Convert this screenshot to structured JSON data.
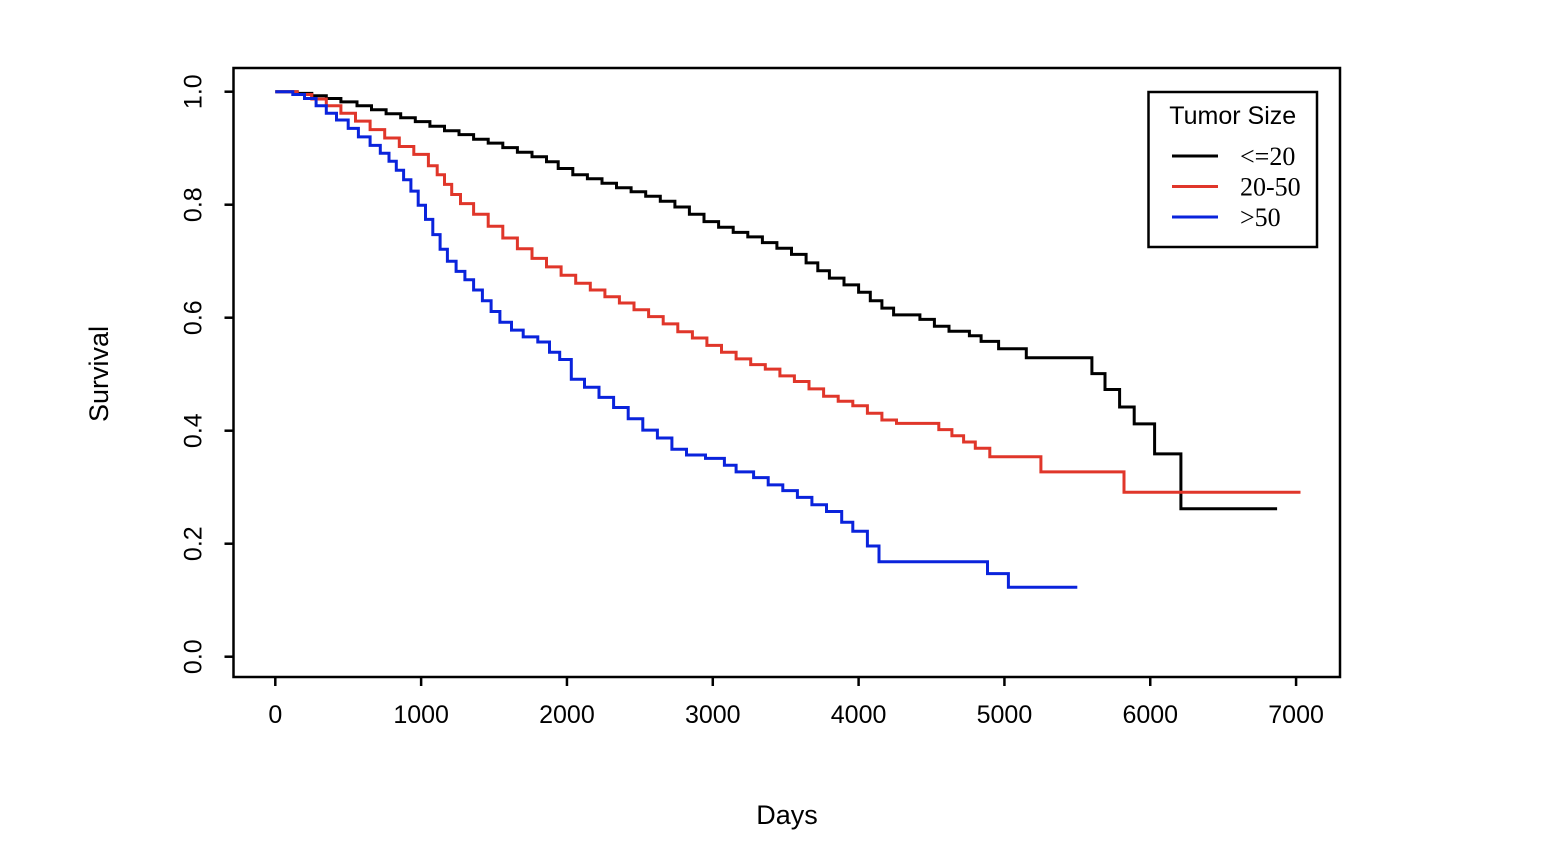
{
  "figure": {
    "background": "#ffffff",
    "frame_color": "#000000"
  },
  "chart_data": {
    "type": "line",
    "subtype": "kaplan-meier-step",
    "title": "",
    "xlabel": "Days",
    "ylabel": "Survival",
    "xlim": [
      0,
      7050
    ],
    "ylim": [
      0.0,
      1.0
    ],
    "x_ticks": [
      0,
      1000,
      2000,
      3000,
      4000,
      5000,
      6000,
      7000
    ],
    "y_ticks": [
      0.0,
      0.2,
      0.4,
      0.6,
      0.8,
      1.0
    ],
    "grid": "off",
    "legend": {
      "title": "Tumor Size",
      "position": "top-right",
      "entries": [
        {
          "label": "<=20",
          "color": "#000000"
        },
        {
          "label": "20-50",
          "color": "#E0362A"
        },
        {
          "label": ">50",
          "color": "#0A23DC"
        }
      ]
    },
    "series": [
      {
        "name": "<=20",
        "color": "#000000",
        "points": [
          [
            0,
            1.0
          ],
          [
            150,
            0.997
          ],
          [
            250,
            0.993
          ],
          [
            350,
            0.988
          ],
          [
            450,
            0.982
          ],
          [
            560,
            0.975
          ],
          [
            660,
            0.968
          ],
          [
            760,
            0.961
          ],
          [
            860,
            0.954
          ],
          [
            960,
            0.947
          ],
          [
            1060,
            0.939
          ],
          [
            1160,
            0.931
          ],
          [
            1260,
            0.924
          ],
          [
            1360,
            0.916
          ],
          [
            1460,
            0.909
          ],
          [
            1560,
            0.901
          ],
          [
            1660,
            0.893
          ],
          [
            1760,
            0.885
          ],
          [
            1860,
            0.876
          ],
          [
            1940,
            0.864
          ],
          [
            2040,
            0.853
          ],
          [
            2140,
            0.846
          ],
          [
            2240,
            0.838
          ],
          [
            2340,
            0.83
          ],
          [
            2440,
            0.823
          ],
          [
            2540,
            0.815
          ],
          [
            2640,
            0.806
          ],
          [
            2740,
            0.796
          ],
          [
            2840,
            0.783
          ],
          [
            2940,
            0.77
          ],
          [
            3040,
            0.76
          ],
          [
            3140,
            0.751
          ],
          [
            3240,
            0.743
          ],
          [
            3340,
            0.733
          ],
          [
            3440,
            0.723
          ],
          [
            3540,
            0.712
          ],
          [
            3640,
            0.697
          ],
          [
            3720,
            0.683
          ],
          [
            3800,
            0.67
          ],
          [
            3900,
            0.658
          ],
          [
            4000,
            0.645
          ],
          [
            4080,
            0.63
          ],
          [
            4160,
            0.617
          ],
          [
            4240,
            0.605
          ],
          [
            4420,
            0.597
          ],
          [
            4520,
            0.585
          ],
          [
            4620,
            0.576
          ],
          [
            4760,
            0.568
          ],
          [
            4840,
            0.558
          ],
          [
            4960,
            0.545
          ],
          [
            5150,
            0.529
          ],
          [
            5600,
            0.501
          ],
          [
            5690,
            0.473
          ],
          [
            5790,
            0.442
          ],
          [
            5890,
            0.412
          ],
          [
            6030,
            0.359
          ],
          [
            6210,
            0.262
          ],
          [
            6870,
            0.262
          ]
        ]
      },
      {
        "name": "20-50",
        "color": "#E0362A",
        "points": [
          [
            0,
            1.0
          ],
          [
            150,
            0.995
          ],
          [
            250,
            0.987
          ],
          [
            350,
            0.975
          ],
          [
            450,
            0.962
          ],
          [
            550,
            0.948
          ],
          [
            650,
            0.933
          ],
          [
            750,
            0.918
          ],
          [
            850,
            0.903
          ],
          [
            950,
            0.889
          ],
          [
            1050,
            0.869
          ],
          [
            1110,
            0.853
          ],
          [
            1160,
            0.836
          ],
          [
            1210,
            0.818
          ],
          [
            1270,
            0.802
          ],
          [
            1360,
            0.783
          ],
          [
            1460,
            0.762
          ],
          [
            1560,
            0.741
          ],
          [
            1660,
            0.722
          ],
          [
            1760,
            0.705
          ],
          [
            1860,
            0.69
          ],
          [
            1960,
            0.675
          ],
          [
            2060,
            0.661
          ],
          [
            2160,
            0.649
          ],
          [
            2260,
            0.637
          ],
          [
            2360,
            0.626
          ],
          [
            2460,
            0.614
          ],
          [
            2560,
            0.602
          ],
          [
            2660,
            0.589
          ],
          [
            2760,
            0.575
          ],
          [
            2860,
            0.564
          ],
          [
            2960,
            0.551
          ],
          [
            3060,
            0.539
          ],
          [
            3160,
            0.527
          ],
          [
            3260,
            0.517
          ],
          [
            3360,
            0.509
          ],
          [
            3460,
            0.497
          ],
          [
            3560,
            0.487
          ],
          [
            3660,
            0.474
          ],
          [
            3760,
            0.461
          ],
          [
            3860,
            0.452
          ],
          [
            3960,
            0.444
          ],
          [
            4060,
            0.431
          ],
          [
            4160,
            0.419
          ],
          [
            4260,
            0.413
          ],
          [
            4550,
            0.402
          ],
          [
            4640,
            0.391
          ],
          [
            4720,
            0.38
          ],
          [
            4800,
            0.369
          ],
          [
            4900,
            0.354
          ],
          [
            5250,
            0.327
          ],
          [
            5820,
            0.291
          ],
          [
            7030,
            0.291
          ]
        ]
      },
      {
        "name": ">50",
        "color": "#0A23DC",
        "points": [
          [
            0,
            1.0
          ],
          [
            120,
            0.995
          ],
          [
            200,
            0.988
          ],
          [
            280,
            0.975
          ],
          [
            350,
            0.962
          ],
          [
            420,
            0.95
          ],
          [
            500,
            0.935
          ],
          [
            570,
            0.92
          ],
          [
            650,
            0.905
          ],
          [
            720,
            0.891
          ],
          [
            780,
            0.877
          ],
          [
            830,
            0.861
          ],
          [
            880,
            0.844
          ],
          [
            930,
            0.824
          ],
          [
            980,
            0.799
          ],
          [
            1030,
            0.774
          ],
          [
            1080,
            0.747
          ],
          [
            1130,
            0.721
          ],
          [
            1180,
            0.7
          ],
          [
            1240,
            0.682
          ],
          [
            1300,
            0.667
          ],
          [
            1360,
            0.649
          ],
          [
            1420,
            0.63
          ],
          [
            1480,
            0.611
          ],
          [
            1540,
            0.592
          ],
          [
            1620,
            0.578
          ],
          [
            1700,
            0.566
          ],
          [
            1800,
            0.557
          ],
          [
            1880,
            0.539
          ],
          [
            1950,
            0.526
          ],
          [
            2030,
            0.491
          ],
          [
            2120,
            0.477
          ],
          [
            2220,
            0.459
          ],
          [
            2320,
            0.441
          ],
          [
            2420,
            0.421
          ],
          [
            2520,
            0.401
          ],
          [
            2620,
            0.387
          ],
          [
            2720,
            0.367
          ],
          [
            2820,
            0.357
          ],
          [
            2950,
            0.351
          ],
          [
            3080,
            0.339
          ],
          [
            3160,
            0.327
          ],
          [
            3280,
            0.317
          ],
          [
            3380,
            0.304
          ],
          [
            3480,
            0.294
          ],
          [
            3580,
            0.282
          ],
          [
            3680,
            0.269
          ],
          [
            3780,
            0.257
          ],
          [
            3884,
            0.238
          ],
          [
            3960,
            0.222
          ],
          [
            4060,
            0.196
          ],
          [
            4140,
            0.168
          ],
          [
            4884,
            0.147
          ],
          [
            5027,
            0.123
          ],
          [
            5500,
            0.123
          ]
        ]
      }
    ]
  }
}
